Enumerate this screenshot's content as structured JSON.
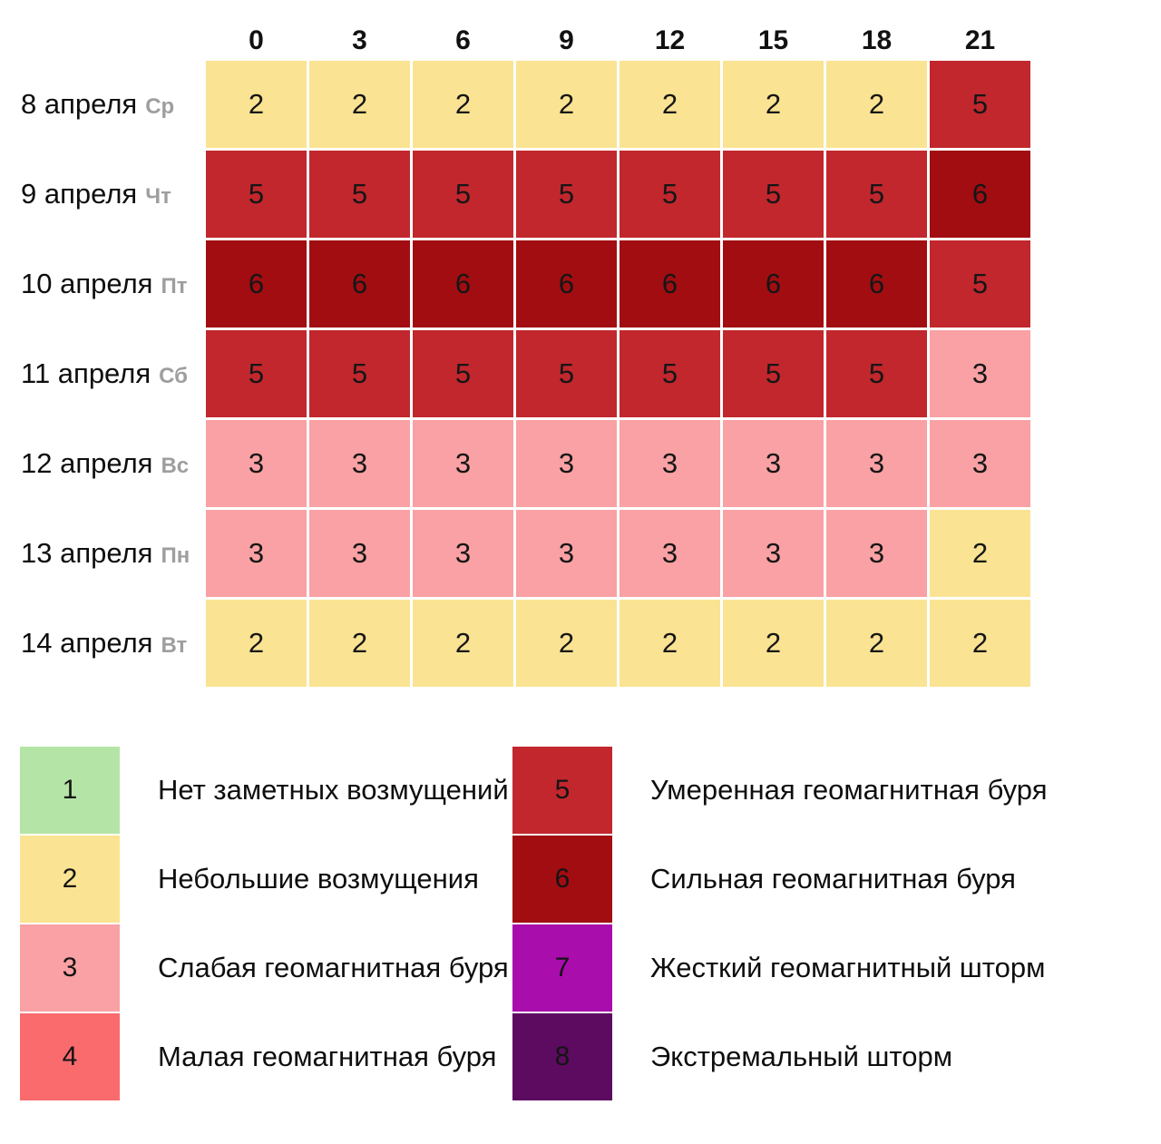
{
  "chart_data": {
    "type": "heatmap",
    "title": "",
    "columns": [
      "0",
      "3",
      "6",
      "9",
      "12",
      "15",
      "18",
      "21"
    ],
    "rows": [
      {
        "date": "8 апреля",
        "weekday": "Ср",
        "values": [
          2,
          2,
          2,
          2,
          2,
          2,
          2,
          5
        ]
      },
      {
        "date": "9 апреля",
        "weekday": "Чт",
        "values": [
          5,
          5,
          5,
          5,
          5,
          5,
          5,
          6
        ]
      },
      {
        "date": "10 апреля",
        "weekday": "Пт",
        "values": [
          6,
          6,
          6,
          6,
          6,
          6,
          6,
          5
        ]
      },
      {
        "date": "11 апреля",
        "weekday": "Сб",
        "values": [
          5,
          5,
          5,
          5,
          5,
          5,
          5,
          3
        ]
      },
      {
        "date": "12 апреля",
        "weekday": "Вс",
        "values": [
          3,
          3,
          3,
          3,
          3,
          3,
          3,
          3
        ]
      },
      {
        "date": "13 апреля",
        "weekday": "Пн",
        "values": [
          3,
          3,
          3,
          3,
          3,
          3,
          3,
          2
        ]
      },
      {
        "date": "14 апреля",
        "weekday": "Вт",
        "values": [
          2,
          2,
          2,
          2,
          2,
          2,
          2,
          2
        ]
      }
    ],
    "legend_position": "bottom",
    "grid": false
  },
  "legend": {
    "items": [
      {
        "level": "1",
        "color": "#b5e5a6",
        "label": "Нет заметных возмущений"
      },
      {
        "level": "2",
        "color": "#fae392",
        "label": "Небольшие возмущения"
      },
      {
        "level": "3",
        "color": "#f9a1a4",
        "label": "Слабая геомагнитная буря"
      },
      {
        "level": "4",
        "color": "#fa6b6e",
        "label": "Малая геомагнитная буря"
      },
      {
        "level": "5",
        "color": "#c1272d",
        "label": "Умеренная геомагнитная буря"
      },
      {
        "level": "6",
        "color": "#a10d11",
        "label": "Сильная геомагнитная буря"
      },
      {
        "level": "7",
        "color": "#a90dac",
        "label": "Жесткий геомагнитный шторм"
      },
      {
        "level": "8",
        "color": "#5d0a61",
        "label": "Экстремальный шторм"
      }
    ]
  }
}
